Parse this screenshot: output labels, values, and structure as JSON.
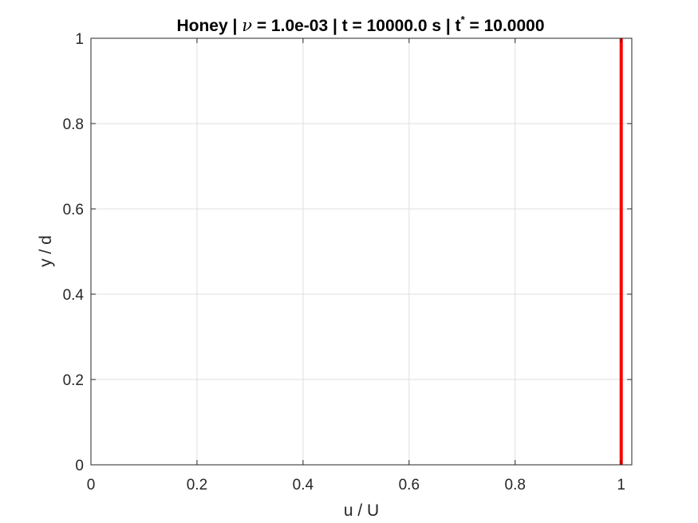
{
  "chart_data": {
    "type": "line",
    "title": {
      "prefix": "Honey | ",
      "symbol": "ν",
      "middle": " = 1.0e-03 | t = 10000.0 s | t",
      "superscript": "*",
      "suffix": " = 10.0000"
    },
    "xlabel": "u / U",
    "ylabel": "y / d",
    "xlim": [
      0,
      1.02
    ],
    "ylim": [
      0,
      1
    ],
    "xticks": [
      0,
      0.2,
      0.4,
      0.6,
      0.8,
      1
    ],
    "xtick_labels": [
      "0",
      "0.2",
      "0.4",
      "0.6",
      "0.8",
      "1"
    ],
    "yticks": [
      0,
      0.2,
      0.4,
      0.6,
      0.8,
      1
    ],
    "ytick_labels": [
      "0",
      "0.2",
      "0.4",
      "0.6",
      "0.8",
      "1"
    ],
    "grid": true,
    "series": [
      {
        "color": "#ff0000",
        "x": [
          1,
          1,
          1,
          1,
          1,
          1
        ],
        "y": [
          0,
          0.2,
          0.4,
          0.6,
          0.8,
          1
        ]
      }
    ]
  }
}
